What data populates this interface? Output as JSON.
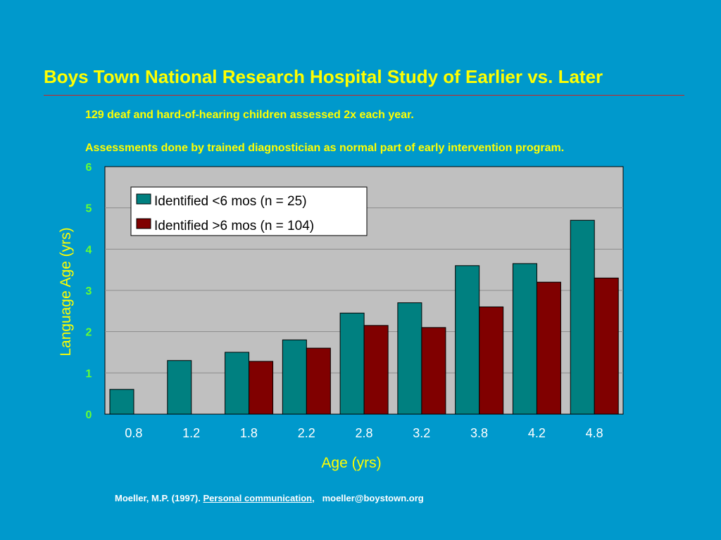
{
  "header": {
    "title": "Boys Town National Research Hospital Study of Earlier vs. Later",
    "subtitle_1": "129 deaf and hard-of-hearing children assessed 2x each year.",
    "subtitle_2": "Assessments done by trained diagnostician as normal part of early intervention program."
  },
  "footer": {
    "citation": "Moeller, M.P. (1997).",
    "link_text": "Personal communication",
    "separator": ",",
    "email": "moeller@boystown.org"
  },
  "colors": {
    "background": "#0099cc",
    "title": "#ffff00",
    "axis_label": "#ffff00",
    "y_tick": "#66ff33",
    "x_tick": "#ffffff",
    "plot_bg": "#c0c0c0",
    "series_early": "#008080",
    "series_late": "#800000"
  },
  "chart_data": {
    "type": "bar",
    "xlabel": "Age (yrs)",
    "ylabel": "Language Age (yrs)",
    "ylim": [
      0,
      6
    ],
    "yticks": [
      "0",
      "1",
      "2",
      "3",
      "4",
      "5",
      "6"
    ],
    "grid": true,
    "legend_position": "top-left",
    "categories": [
      "0.8",
      "1.2",
      "1.8",
      "2.2",
      "2.8",
      "3.2",
      "3.8",
      "4.2",
      "4.8"
    ],
    "series": [
      {
        "name": "Identified <6 mos (n = 25)",
        "values": [
          0.6,
          1.3,
          1.5,
          1.8,
          2.45,
          2.7,
          3.6,
          3.65,
          4.7
        ]
      },
      {
        "name": "Identified >6 mos (n = 104)",
        "values": [
          null,
          null,
          1.28,
          1.6,
          2.15,
          2.1,
          2.6,
          3.2,
          3.3
        ]
      }
    ]
  }
}
